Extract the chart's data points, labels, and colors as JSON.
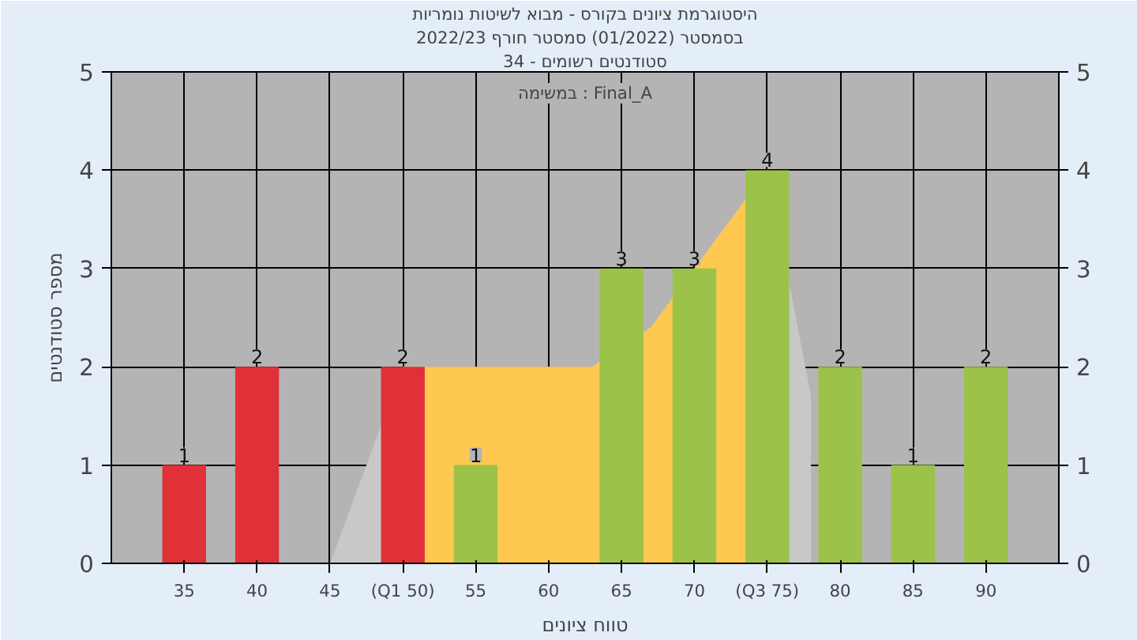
{
  "chart_data": {
    "type": "bar",
    "title": "היסטוגרמת ציונים בקורס - מבוא לשיטות נומריות",
    "subtitle": "בסמסטר  (01/2022)  סמסטר חורף 2022/23",
    "xlabel": "טווח ציונים",
    "ylabel": "מספר סטודנטים",
    "annotations": [
      "סטודנטים רשומים - 34",
      "במשימה : Final_A"
    ],
    "x": [
      35,
      40,
      45,
      50,
      55,
      60,
      65,
      70,
      75,
      80,
      85,
      90
    ],
    "series": [
      {
        "type": "area",
        "color": "#c8c8c8",
        "x": [
          45,
          50,
          55,
          60,
          63,
          67,
          70,
          75,
          78
        ],
        "values": [
          0,
          2,
          2,
          2,
          2,
          2.4,
          3,
          4,
          1.7
        ]
      },
      {
        "type": "area",
        "color": "#ffc850",
        "x": [
          50,
          55,
          60,
          63,
          67,
          70,
          75
        ],
        "values": [
          2,
          2,
          2,
          2,
          2.4,
          3,
          4
        ]
      },
      {
        "colors": [
          "#e03038",
          "#e03038",
          "#e03038",
          "#e03038",
          "#9cc24a",
          "#9cc24a",
          "#9cc24a",
          "#9cc24a",
          "#9cc24a",
          "#9cc24a",
          "#9cc24a",
          "#9cc24a"
        ],
        "values": [
          1,
          2,
          0,
          2,
          1,
          0,
          3,
          3,
          4,
          2,
          1,
          2
        ],
        "value_labels": [
          "1",
          "2",
          null,
          "2",
          "1",
          null,
          "3",
          "3",
          "4",
          "2",
          "1",
          "2"
        ]
      }
    ],
    "xlim": [
      30,
      95
    ],
    "xticks": [
      35,
      40,
      45,
      {
        "value": 50,
        "label": "(Q1 50)"
      },
      55,
      60,
      65,
      70,
      {
        "value": 75,
        "label": "(Q3 75)"
      },
      80,
      85,
      90
    ],
    "ylim": [
      0,
      5
    ],
    "yticks": [
      0,
      1,
      2,
      3,
      4,
      5
    ],
    "y2lim": [
      0,
      5
    ],
    "y2ticks": [
      0,
      1,
      2,
      3,
      4,
      5
    ],
    "grid": true
  }
}
